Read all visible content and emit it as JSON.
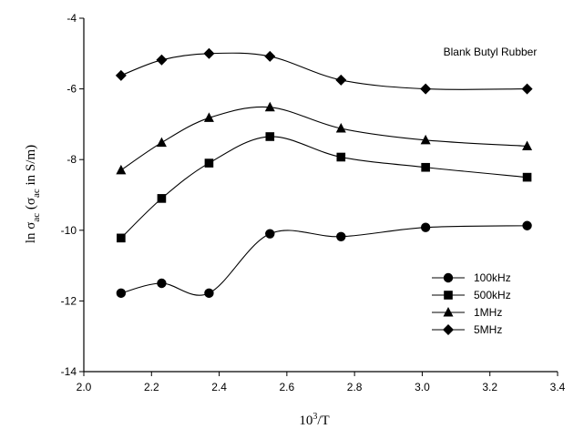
{
  "chart_data": {
    "type": "line",
    "title": "",
    "annotation": "Blank Butyl Rubber",
    "xlabel": {
      "base": "10",
      "sup": "3",
      "rest": "/T"
    },
    "ylabel": {
      "a": "ln σ",
      "a_sub": "ac",
      "b": " (σ",
      "b_sub": "ac",
      "c": " in S/m)"
    },
    "xlim": [
      2.0,
      3.4
    ],
    "ylim": [
      -14,
      -4
    ],
    "x_ticks": [
      "2.0",
      "2.2",
      "2.4",
      "2.6",
      "2.8",
      "3.0",
      "3.2",
      "3.4"
    ],
    "y_ticks": [
      "-4",
      "-6",
      "-8",
      "-10",
      "-12",
      "-14"
    ],
    "grid": false,
    "legend_position": "lower-right",
    "x": [
      2.11,
      2.23,
      2.37,
      2.55,
      2.76,
      3.01,
      3.31
    ],
    "series": [
      {
        "name": "100kHz",
        "marker": "circle",
        "values": [
          -11.78,
          -11.5,
          -11.78,
          -10.1,
          -10.18,
          -9.92,
          -9.87
        ]
      },
      {
        "name": "500kHz",
        "marker": "square",
        "values": [
          -10.22,
          -9.1,
          -8.1,
          -7.35,
          -7.93,
          -8.22,
          -8.5
        ]
      },
      {
        "name": "1MHz",
        "marker": "triangle",
        "values": [
          -8.3,
          -7.52,
          -6.82,
          -6.52,
          -7.12,
          -7.45,
          -7.62
        ]
      },
      {
        "name": "5MHz",
        "marker": "diamond",
        "values": [
          -5.62,
          -5.18,
          -5.0,
          -5.08,
          -5.75,
          -6.0,
          -6.0
        ]
      }
    ]
  }
}
